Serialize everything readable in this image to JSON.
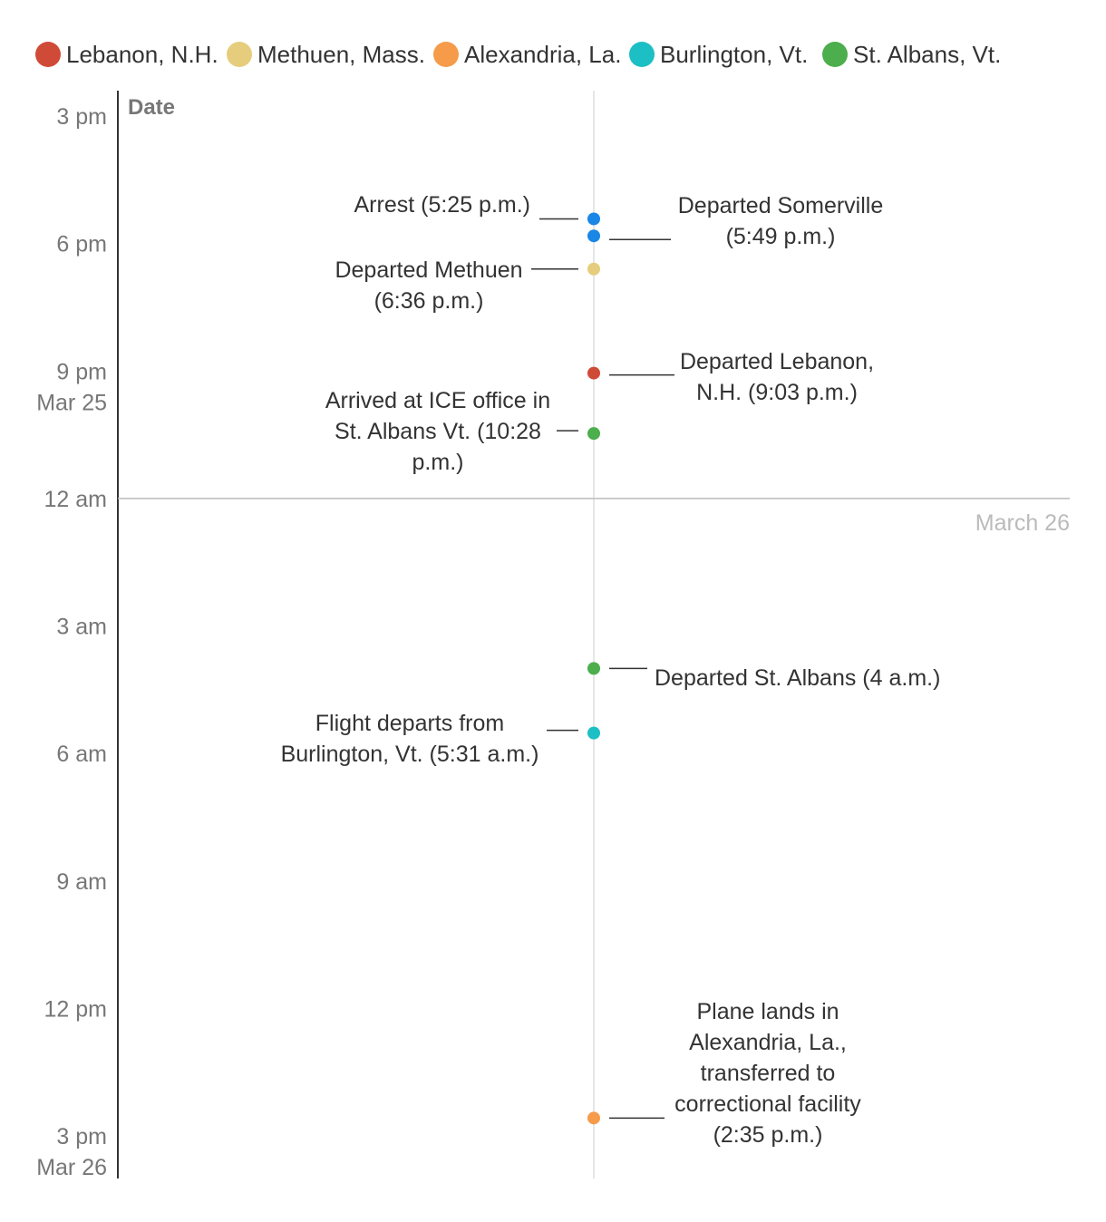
{
  "chart_data": {
    "type": "scatter",
    "title": "",
    "ylabel": "Date",
    "xlabel": "",
    "legend_position": "top",
    "legend": [
      {
        "name": "Lebanon, N.H.",
        "color": "#d04a38"
      },
      {
        "name": "Methuen, Mass.",
        "color": "#e6cd7e"
      },
      {
        "name": "Alexandria, La.",
        "color": "#f59b4a"
      },
      {
        "name": "Burlington, Vt.",
        "color": "#1cbfc4"
      },
      {
        "name": "St. Albans, Vt.",
        "color": "#4cae4c"
      }
    ],
    "y_range_hours": [
      15,
      39
    ],
    "y_ticks": [
      {
        "hour": 15,
        "label": "3 pm"
      },
      {
        "hour": 18,
        "label": "6 pm"
      },
      {
        "hour": 21,
        "label": "9 pm",
        "sublabel": "Mar 25"
      },
      {
        "hour": 24,
        "label": "12 am"
      },
      {
        "hour": 27,
        "label": "3 am"
      },
      {
        "hour": 30,
        "label": "6 am"
      },
      {
        "hour": 33,
        "label": "9 am"
      },
      {
        "hour": 36,
        "label": "12 pm"
      },
      {
        "hour": 39,
        "label": "3 pm",
        "sublabel": "Mar 26"
      }
    ],
    "date_divider": {
      "hour": 24,
      "label": "March 26"
    },
    "events": [
      {
        "hour": 17.42,
        "color": "#1a86e6",
        "side": "left",
        "lines": [
          "Arrest (5:25 p.m.)"
        ]
      },
      {
        "hour": 17.82,
        "color": "#1a86e6",
        "side": "right",
        "lines": [
          "Departed Somerville",
          "(5:49 p.m.)"
        ]
      },
      {
        "hour": 18.6,
        "color": "#e6cd7e",
        "side": "left",
        "lines": [
          "Departed Methuen",
          "(6:36 p.m.)"
        ]
      },
      {
        "hour": 21.05,
        "color": "#d04a38",
        "side": "right",
        "lines": [
          "Departed Lebanon,",
          "N.H. (9:03 p.m.)"
        ]
      },
      {
        "hour": 22.47,
        "color": "#4cae4c",
        "side": "left",
        "lines": [
          "Arrived at ICE office in",
          "St. Albans Vt. (10:28",
          "p.m.)"
        ]
      },
      {
        "hour": 28,
        "color": "#4cae4c",
        "side": "right",
        "lines": [
          "Departed St. Albans (4 a.m.)"
        ]
      },
      {
        "hour": 29.52,
        "color": "#1cbfc4",
        "side": "left",
        "lines": [
          "Flight departs from",
          "Burlington, Vt. (5:31 a.m.)"
        ]
      },
      {
        "hour": 38.58,
        "color": "#f59b4a",
        "side": "right",
        "lines": [
          "Plane lands in",
          "Alexandria, La.,",
          "transferred to",
          "correctional facility",
          "(2:35 p.m.)"
        ]
      }
    ]
  }
}
